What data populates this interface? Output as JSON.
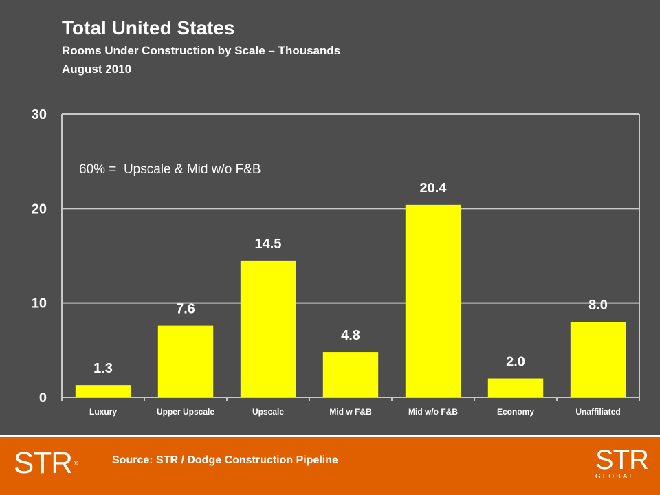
{
  "header": {
    "title": "Total United States",
    "subtitle": "Rooms Under Construction by Scale – Thousands",
    "date": "August 2010"
  },
  "chart_data": {
    "type": "bar",
    "categories": [
      "Luxury",
      "Upper Upscale",
      "Upscale",
      "Mid w F&B",
      "Mid w/o F&B",
      "Economy",
      "Unaffiliated"
    ],
    "values": [
      1.3,
      7.6,
      14.5,
      4.8,
      20.4,
      2.0,
      8.0
    ],
    "value_labels": [
      "1.3",
      "7.6",
      "14.5",
      "4.8",
      "20.4",
      "2.0",
      "8.0"
    ],
    "ylim": [
      0,
      30
    ],
    "yticks": [
      0,
      10,
      20,
      30
    ],
    "grid": true,
    "annotation": "60% =  Upscale & Mid w/o F&B",
    "bar_color": "#ffff00",
    "grid_color": "#c8c8c8"
  },
  "footer": {
    "source": "Source: STR / Dodge Construction Pipeline",
    "logo_left": "STR",
    "logo_left_mark": "®",
    "logo_right": "STR",
    "logo_right_sub": "GLOBAL",
    "accent": "#e06000"
  }
}
